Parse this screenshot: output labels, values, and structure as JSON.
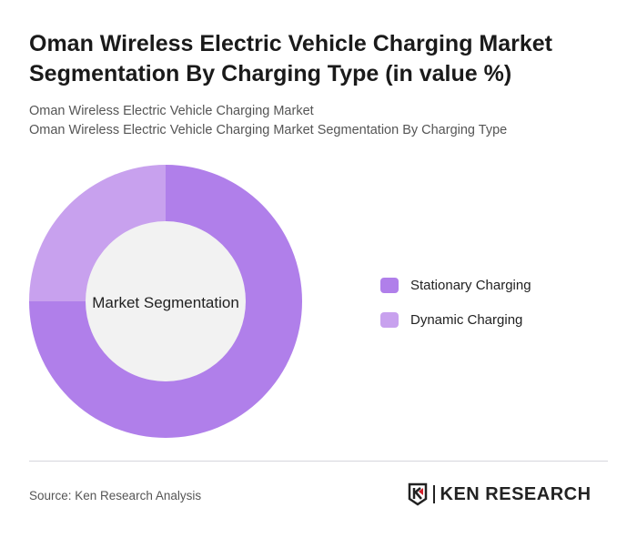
{
  "title": "Oman Wireless Electric Vehicle Charging Market Segmentation By Charging Type (in value %)",
  "subtitle1": "Oman Wireless Electric Vehicle Charging Market",
  "subtitle2": "Oman Wireless Electric Vehicle Charging Market Segmentation By Charging Type",
  "source": "Source: Ken Research Analysis",
  "logo_text": "KEN RESEARCH",
  "chart_data": {
    "type": "pie",
    "center_label": "Market Segmentation",
    "categories": [
      "Stationary Charging",
      "Dynamic Charging"
    ],
    "values": [
      75,
      25
    ],
    "colors": [
      "#b07fea",
      "#c8a1ee"
    ],
    "legend": "right"
  }
}
